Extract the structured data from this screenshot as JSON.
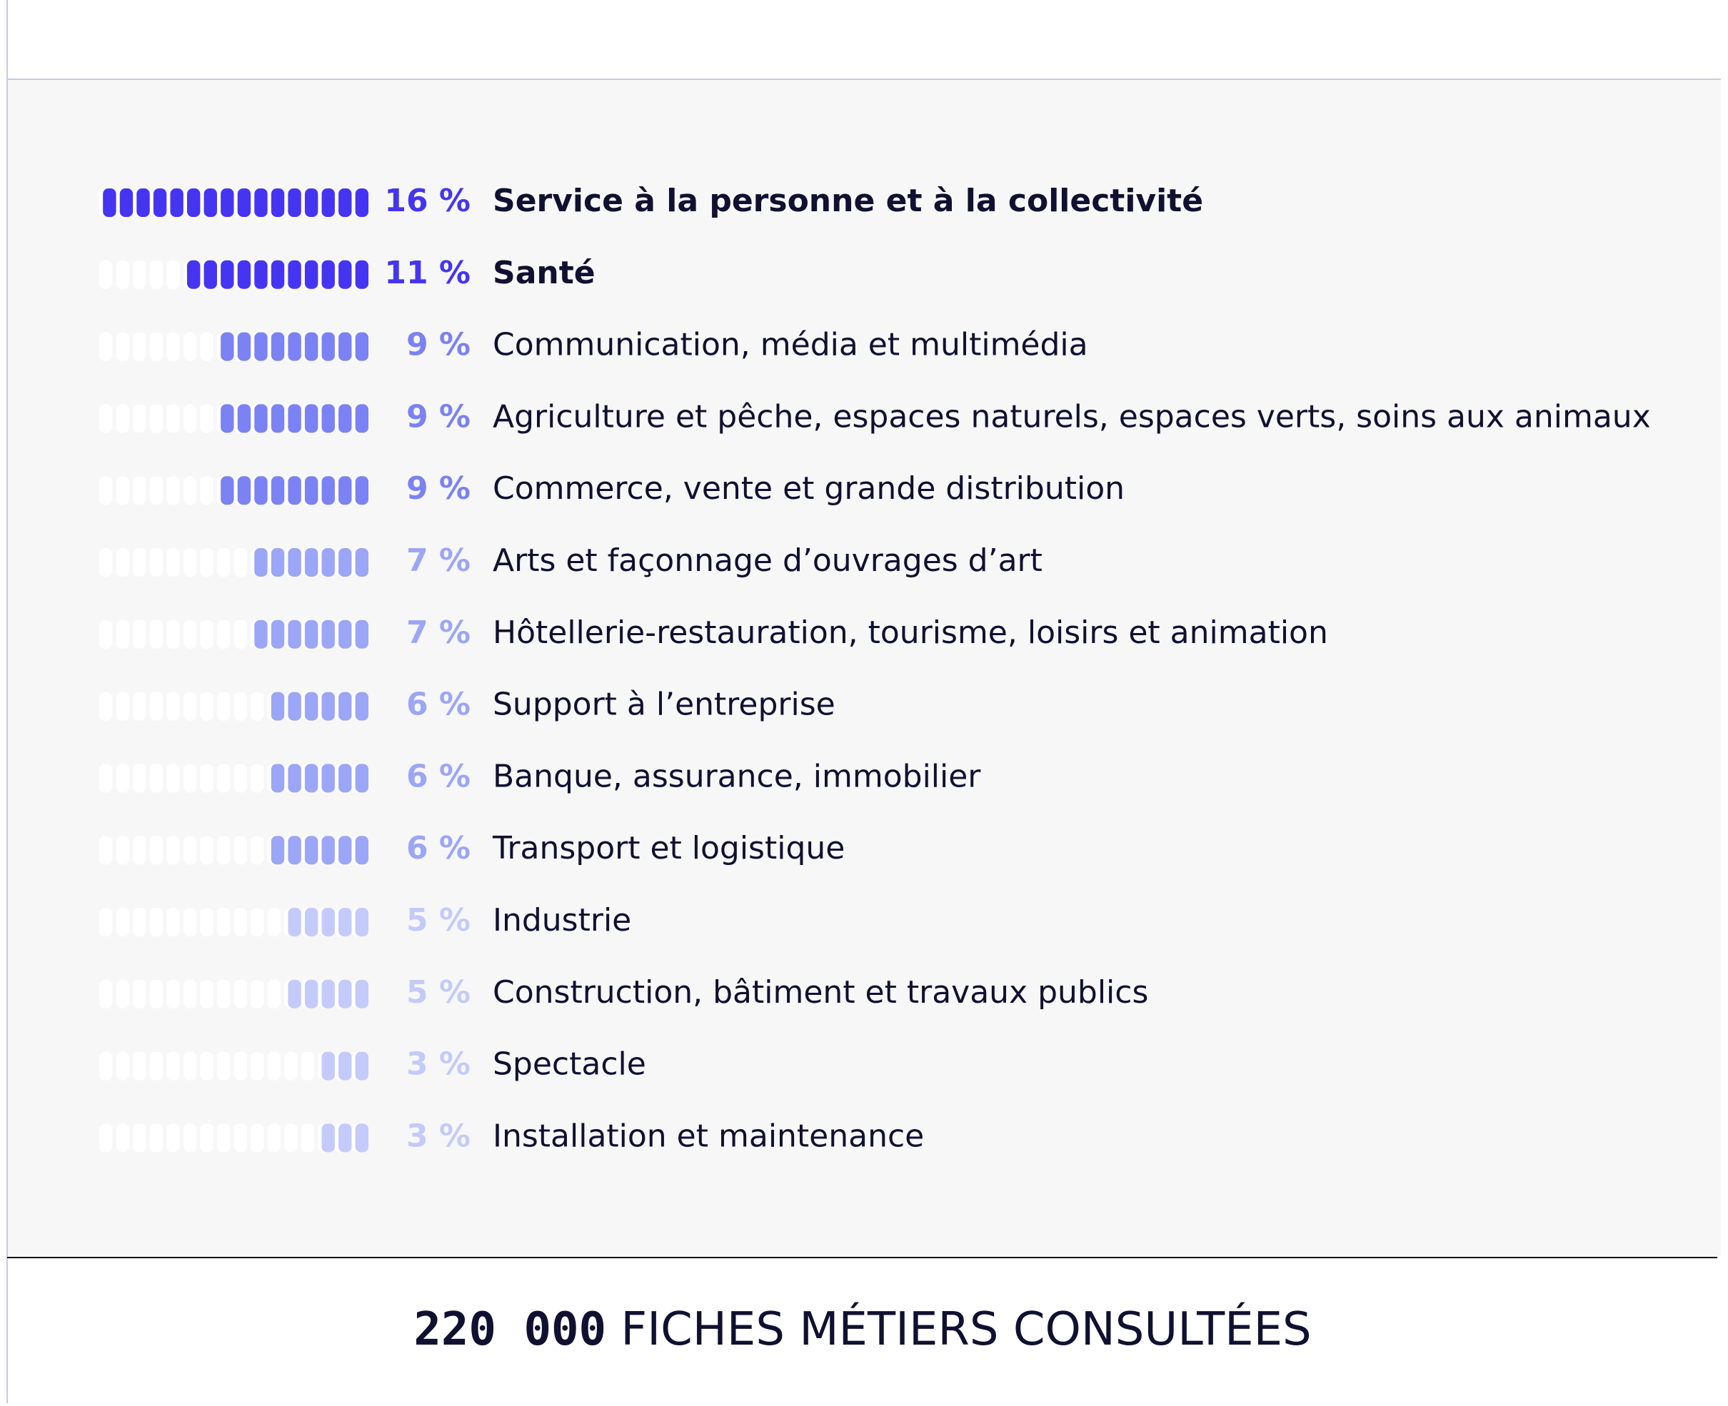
{
  "chart_data": {
    "type": "pictogram-bar",
    "categories": [
      "Service à la personne et à la collectivité",
      "Santé",
      "Communication, média et multimédia",
      "Agriculture et pêche, espaces naturels, espaces verts, soins aux animaux",
      "Commerce, vente et grande distribution",
      "Arts et façonnage d’ouvrages d’art",
      "Hôtellerie-restauration, tourisme, loisirs et animation",
      "Support à l’entreprise",
      "Banque, assurance, immobilier",
      "Transport et logistique",
      "Industrie",
      "Construction, bâtiment et travaux publics",
      "Spectacle",
      "Installation et maintenance"
    ],
    "values": [
      16,
      11,
      9,
      9,
      9,
      7,
      7,
      6,
      6,
      6,
      5,
      5,
      3,
      3
    ],
    "value_labels": [
      "16 %",
      "11 %",
      "9 %",
      "9 %",
      "9 %",
      "7 %",
      "7 %",
      "6 %",
      "6 %",
      "6 %",
      "5 %",
      "5 %",
      "3 %",
      "3 %"
    ],
    "colors": [
      "#4535f0",
      "#4535f0",
      "#7b82f4",
      "#7b82f4",
      "#7b82f4",
      "#9ca6f6",
      "#9ca6f6",
      "#9ca6f6",
      "#9ca6f6",
      "#9ca6f6",
      "#c4cbfa",
      "#c4cbfa",
      "#c4cbfa",
      "#c4cbfa"
    ],
    "bold": [
      true,
      true,
      false,
      false,
      false,
      false,
      false,
      false,
      false,
      false,
      false,
      false,
      false,
      false
    ],
    "xlim": [
      0,
      16
    ]
  },
  "footer": {
    "number": "220 000",
    "text": "FICHES MÉTIERS CONSULTÉES"
  }
}
